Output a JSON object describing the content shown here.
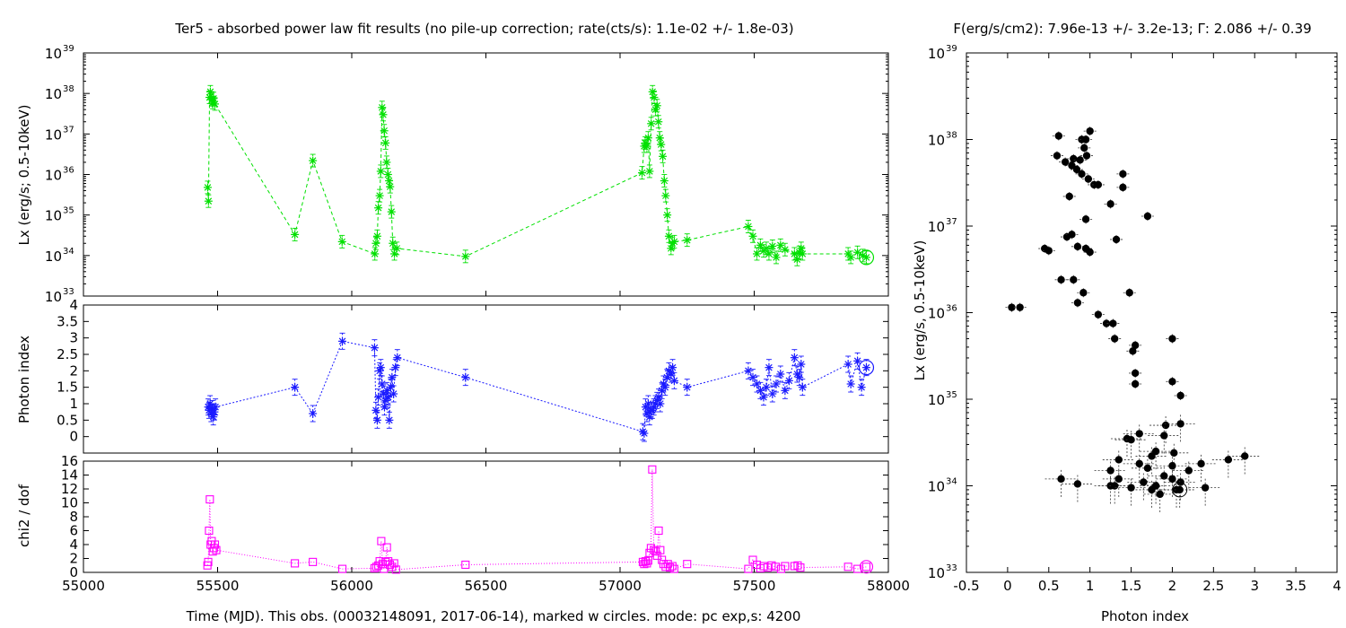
{
  "figure": {
    "left_title": "Ter5  - absorbed power law fit results (no pile-up correction; rate(cts/s): 1.1e-02 +/- 1.8e-03)",
    "right_title": "F(erg/s/cm2): 7.96e-13 +/- 3.2e-13; Γ: 2.086 +/- 0.39",
    "bottom_xlabel": "Time (MJD). This obs. (00032148091, 2017-06-14), marked w circles. mode: pc exp,s: 4200",
    "colors": {
      "lx": "#00e000",
      "gamma": "#1a1aff",
      "chi": "#ff00ff",
      "scatter": "#000000",
      "err": "#333333"
    }
  },
  "chart_data": [
    {
      "type": "scatter",
      "panel": "lx_vs_time",
      "ylabel": "Lx (erg/s; 0.5-10keV)",
      "yscale": "log",
      "xlim": [
        55000,
        58000
      ],
      "ylim": [
        1e+33,
        1e+39
      ],
      "ytick_exponents": [
        33,
        34,
        35,
        36,
        37,
        38,
        39
      ],
      "connected": true,
      "x": [
        55463,
        55466,
        55470,
        55473,
        55478,
        55482,
        55485,
        55490,
        55788,
        55855,
        55964,
        56086,
        56090,
        56095,
        56099,
        56104,
        56108,
        56113,
        56117,
        56121,
        56126,
        56130,
        56135,
        56139,
        56143,
        56148,
        56153,
        56159,
        56168,
        56424,
        57082,
        57090,
        57094,
        57100,
        57105,
        57110,
        57116,
        57121,
        57127,
        57132,
        57138,
        57143,
        57148,
        57153,
        57159,
        57165,
        57170,
        57176,
        57182,
        57190,
        57195,
        57202,
        57250,
        57478,
        57495,
        57510,
        57523,
        57535,
        57545,
        57555,
        57568,
        57582,
        57598,
        57615,
        57650,
        57660,
        57668,
        57675,
        57680,
        57850,
        57860,
        57885,
        57905,
        57918
      ],
      "y": [
        4.8e+35,
        2.2e+35,
        8e+37,
        1.1e+38,
        7e+37,
        6e+37,
        7.5e+37,
        5.5e+37,
        3.3e+34,
        2.2e+36,
        2.2e+34,
        1.1e+34,
        2e+34,
        3e+34,
        1.5e+35,
        3e+35,
        1.2e+36,
        4.5e+37,
        3e+37,
        1.2e+37,
        6e+36,
        2e+36,
        1e+36,
        7e+35,
        5e+35,
        1.2e+35,
        2e+34,
        1.1e+34,
        1.5e+34,
        9.5e+33,
        1.1e+36,
        5e+36,
        6e+36,
        5e+36,
        8e+36,
        1.2e+36,
        1.8e+37,
        1.1e+38,
        8e+37,
        4e+37,
        5e+37,
        2e+37,
        8e+36,
        5.5e+36,
        2.8e+36,
        7e+35,
        3e+35,
        1e+35,
        3e+34,
        1.5e+34,
        2e+34,
        2.2e+34,
        2.4e+34,
        5.2e+34,
        3e+34,
        1.1e+34,
        1.8e+34,
        1.3e+34,
        1.5e+34,
        1.1e+34,
        1.7e+34,
        9e+33,
        1.8e+34,
        1.4e+34,
        1.1e+34,
        8e+33,
        1.2e+34,
        1.5e+34,
        1.1e+34,
        1.1e+34,
        9e+33,
        1.2e+34,
        1e+34,
        9e+33
      ]
    },
    {
      "type": "scatter",
      "panel": "gamma_vs_time",
      "ylabel": "Photon index",
      "xlim": [
        55000,
        58000
      ],
      "ylim": [
        -0.5,
        4
      ],
      "yticks": [
        0,
        0.5,
        1,
        1.5,
        2,
        2.5,
        3,
        3.5,
        4
      ],
      "connected": true,
      "x": [
        55465,
        55468,
        55472,
        55476,
        55480,
        55484,
        55488,
        55492,
        55788,
        55855,
        55965,
        56085,
        56090,
        56095,
        56099,
        56104,
        56108,
        56113,
        56118,
        56122,
        56127,
        56131,
        56136,
        56140,
        56145,
        56150,
        56156,
        56163,
        56170,
        56424,
        57085,
        57090,
        57095,
        57100,
        57105,
        57110,
        57115,
        57120,
        57126,
        57132,
        57138,
        57144,
        57150,
        57156,
        57162,
        57168,
        57175,
        57182,
        57190,
        57196,
        57202,
        57250,
        57478,
        57495,
        57510,
        57523,
        57535,
        57545,
        57555,
        57568,
        57582,
        57598,
        57615,
        57630,
        57650,
        57660,
        57668,
        57675,
        57680,
        57850,
        57860,
        57885,
        57900,
        57918
      ],
      "y": [
        0.9,
        0.8,
        1.0,
        0.7,
        0.85,
        0.6,
        0.75,
        0.9,
        1.5,
        0.7,
        2.9,
        2.7,
        0.8,
        0.5,
        1.2,
        2.0,
        2.1,
        1.6,
        1.3,
        0.9,
        1.1,
        1.4,
        1.2,
        0.5,
        1.5,
        1.8,
        1.3,
        2.1,
        2.4,
        1.8,
        0.15,
        0.1,
        0.9,
        0.7,
        1.0,
        0.6,
        0.8,
        0.8,
        0.9,
        1.0,
        1.1,
        1.2,
        1.0,
        1.4,
        1.6,
        1.5,
        1.8,
        2.0,
        1.9,
        2.1,
        1.7,
        1.5,
        2.0,
        1.8,
        1.6,
        1.4,
        1.2,
        1.5,
        2.1,
        1.3,
        1.6,
        1.9,
        1.4,
        1.7,
        2.4,
        1.9,
        1.8,
        2.2,
        1.5,
        2.2,
        1.6,
        2.3,
        1.5,
        2.1
      ]
    },
    {
      "type": "scatter",
      "panel": "chi_vs_time",
      "ylabel": "chi2 / dof",
      "xlabel_ticks": [
        55000,
        55500,
        56000,
        56500,
        57000,
        57500,
        58000
      ],
      "xlim": [
        55000,
        58000
      ],
      "ylim": [
        0,
        16
      ],
      "yticks": [
        0,
        2,
        4,
        6,
        8,
        10,
        12,
        14,
        16
      ],
      "connected": true,
      "x": [
        55462,
        55465,
        55468,
        55471,
        55474,
        55478,
        55482,
        55486,
        55490,
        55495,
        55788,
        55855,
        55965,
        56085,
        56092,
        56099,
        56104,
        56110,
        56115,
        56120,
        56126,
        56131,
        56136,
        56142,
        56150,
        56158,
        56165,
        56424,
        57085,
        57090,
        57095,
        57100,
        57105,
        57110,
        57115,
        57120,
        57126,
        57132,
        57138,
        57144,
        57150,
        57156,
        57162,
        57170,
        57178,
        57186,
        57195,
        57202,
        57250,
        57478,
        57495,
        57510,
        57523,
        57535,
        57550,
        57565,
        57580,
        57600,
        57615,
        57650,
        57662,
        57672,
        57850,
        57885,
        57918
      ],
      "y": [
        1.0,
        1.5,
        6.0,
        10.5,
        4.0,
        4.5,
        3.0,
        3.5,
        4.0,
        3.2,
        1.3,
        1.5,
        0.5,
        0.6,
        0.8,
        1.0,
        1.6,
        4.5,
        1.2,
        0.5,
        1.5,
        3.6,
        1.6,
        1.1,
        0.8,
        1.3,
        0.4,
        1.1,
        1.5,
        1.2,
        1.6,
        1.3,
        1.7,
        2.8,
        3.5,
        14.8,
        3.2,
        3.0,
        2.4,
        6.0,
        3.2,
        1.8,
        1.2,
        0.8,
        1.2,
        0.7,
        0.9,
        0.5,
        1.2,
        0.5,
        1.8,
        1.1,
        0.6,
        0.9,
        0.7,
        1.0,
        0.8,
        0.5,
        0.9,
        0.9,
        1.0,
        0.7,
        0.8,
        0.5,
        0.8
      ]
    },
    {
      "type": "scatter",
      "panel": "lx_vs_gamma",
      "xlabel": "Photon index",
      "ylabel": "Lx (erg/s, 0.5-10keV)",
      "yscale": "log",
      "xlim": [
        -0.5,
        4
      ],
      "ylim": [
        1e+33,
        1e+39
      ],
      "xticks": [
        -0.5,
        0,
        0.5,
        1,
        1.5,
        2,
        2.5,
        3,
        3.5,
        4
      ],
      "ytick_exponents": [
        33,
        34,
        35,
        36,
        37,
        38,
        39
      ],
      "points": [
        [
          0.62,
          1.1e+38
        ],
        [
          0.6,
          6.5e+37
        ],
        [
          0.7,
          5.5e+37
        ],
        [
          0.78,
          5e+37
        ],
        [
          0.8,
          6e+37
        ],
        [
          0.84,
          4.5e+37
        ],
        [
          0.88,
          5.8e+37
        ],
        [
          0.9,
          1e+38
        ],
        [
          0.93,
          8e+37
        ],
        [
          0.96,
          6.5e+37
        ],
        [
          1.0,
          1.25e+38
        ],
        [
          0.95,
          1e+38
        ],
        [
          0.9,
          4e+37
        ],
        [
          0.98,
          3.5e+37
        ],
        [
          1.05,
          3e+37
        ],
        [
          1.1,
          3e+37
        ],
        [
          1.4,
          4e+37
        ],
        [
          1.4,
          2.8e+37
        ],
        [
          1.25,
          1.8e+37
        ],
        [
          1.7,
          1.3e+37
        ],
        [
          0.75,
          2.2e+37
        ],
        [
          0.95,
          1.2e+37
        ],
        [
          0.72,
          7.5e+36
        ],
        [
          0.78,
          8e+36
        ],
        [
          1.32,
          7e+36
        ],
        [
          0.85,
          5.8e+36
        ],
        [
          0.95,
          5.5e+36
        ],
        [
          1.0,
          5e+36
        ],
        [
          0.45,
          5.5e+36
        ],
        [
          0.5,
          5.2e+36
        ],
        [
          0.65,
          2.4e+36
        ],
        [
          0.8,
          2.4e+36
        ],
        [
          0.92,
          1.7e+36
        ],
        [
          1.48,
          1.7e+36
        ],
        [
          0.85,
          1.3e+36
        ],
        [
          0.05,
          1.15e+36
        ],
        [
          0.15,
          1.15e+36
        ],
        [
          1.1,
          9.5e+35
        ],
        [
          1.2,
          7.5e+35
        ],
        [
          1.28,
          7.5e+35
        ],
        [
          1.3,
          5e+35
        ],
        [
          1.55,
          4.2e+35
        ],
        [
          1.52,
          3.6e+35
        ],
        [
          2.0,
          5e+35
        ],
        [
          1.55,
          2e+35
        ],
        [
          1.55,
          1.5e+35
        ],
        [
          2.0,
          1.6e+35
        ],
        [
          2.1,
          1.1e+35
        ],
        [
          1.92,
          5e+34
        ],
        [
          2.1,
          5.2e+34
        ],
        [
          1.6,
          4e+34
        ],
        [
          1.9,
          3.8e+34
        ],
        [
          1.45,
          3.5e+34
        ],
        [
          1.5,
          3.4e+34
        ],
        [
          1.8,
          2.5e+34
        ],
        [
          1.35,
          2e+34
        ],
        [
          1.75,
          2.2e+34
        ],
        [
          2.02,
          2.4e+34
        ],
        [
          2.68,
          2e+34
        ],
        [
          2.88,
          2.2e+34
        ],
        [
          1.25,
          1.5e+34
        ],
        [
          1.6,
          1.8e+34
        ],
        [
          1.7,
          1.6e+34
        ],
        [
          2.0,
          1.7e+34
        ],
        [
          2.2,
          1.5e+34
        ],
        [
          2.35,
          1.8e+34
        ],
        [
          1.35,
          1.2e+34
        ],
        [
          1.9,
          1.3e+34
        ],
        [
          2.1,
          1.1e+34
        ],
        [
          0.65,
          1.2e+34
        ],
        [
          0.85,
          1.05e+34
        ],
        [
          1.25,
          1e+34
        ],
        [
          1.3,
          1e+34
        ],
        [
          1.5,
          9.5e+33
        ],
        [
          1.65,
          1.1e+34
        ],
        [
          1.8,
          1e+34
        ],
        [
          1.75,
          9e+33
        ],
        [
          2.0,
          1.2e+34
        ],
        [
          2.05,
          9e+33
        ],
        [
          2.4,
          9.5e+33
        ],
        [
          1.85,
          8e+33
        ],
        [
          2.09,
          9e+33
        ]
      ]
    }
  ]
}
